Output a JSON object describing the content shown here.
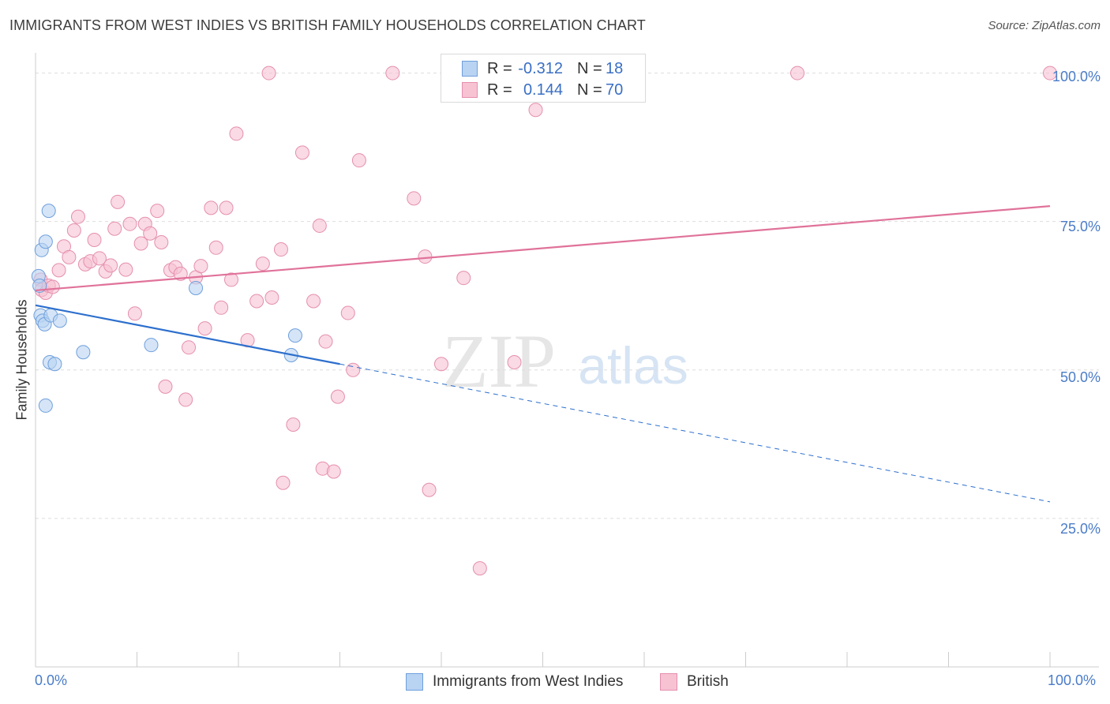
{
  "title": "IMMIGRANTS FROM WEST INDIES VS BRITISH FAMILY HOUSEHOLDS CORRELATION CHART",
  "source": "Source: ZipAtlas.com",
  "watermark": {
    "zip": "ZIP",
    "atlas": "atlas"
  },
  "legend_top": [
    {
      "r_label": "R =",
      "r_value": "-0.312",
      "n_label": "N =",
      "n_value": "18"
    },
    {
      "r_label": "R =",
      "r_value": "0.144",
      "n_label": "N =",
      "n_value": "70"
    }
  ],
  "legend_bottom": [
    {
      "label": "Immigrants from West Indies"
    },
    {
      "label": "British"
    }
  ],
  "colors": {
    "blue_fill": "#b9d3f2",
    "blue_stroke": "#6f9fdc",
    "blue_line": "#2d6fcd",
    "pink_fill": "#f7c2d2",
    "pink_stroke": "#e58fae",
    "pink_line": "#e0729a",
    "tick_text": "#4a7cc8",
    "grid": "#dddddd"
  },
  "chart_data": {
    "type": "scatter",
    "title": "IMMIGRANTS FROM WEST INDIES VS BRITISH FAMILY HOUSEHOLDS CORRELATION CHART",
    "xlabel": "",
    "ylabel": "Family Households",
    "xlim": [
      0,
      100
    ],
    "ylim": [
      0,
      103
    ],
    "x_tick_labels": [
      "0.0%",
      "100.0%"
    ],
    "y_ticks": [
      25,
      50,
      75,
      100
    ],
    "y_tick_labels": [
      "25.0%",
      "50.0%",
      "75.0%",
      "100.0%"
    ],
    "series": [
      {
        "name": "Immigrants from West Indies",
        "color": "blue",
        "r": -0.312,
        "n": 18,
        "trend": {
          "x0": 0,
          "y0": 60.9,
          "x1_solid": 30,
          "y1_solid": 51.0,
          "x1_dash": 100,
          "y1_dash": 27.8
        },
        "points": [
          [
            0.3,
            65.8
          ],
          [
            0.4,
            64.2
          ],
          [
            0.5,
            59.2
          ],
          [
            0.6,
            70.2
          ],
          [
            0.7,
            58.3
          ],
          [
            0.9,
            57.7
          ],
          [
            1.0,
            71.6
          ],
          [
            1.0,
            44.0
          ],
          [
            1.3,
            76.8
          ],
          [
            1.4,
            51.3
          ],
          [
            1.5,
            59.2
          ],
          [
            1.9,
            51.0
          ],
          [
            2.4,
            58.3
          ],
          [
            4.7,
            53.0
          ],
          [
            11.4,
            54.2
          ],
          [
            15.8,
            63.8
          ],
          [
            25.2,
            52.5
          ],
          [
            25.6,
            55.8
          ]
        ]
      },
      {
        "name": "British",
        "color": "pink",
        "r": 0.144,
        "n": 70,
        "trend": {
          "x0": 0,
          "y0": 63.4,
          "x1": 100,
          "y1": 77.6
        },
        "points": [
          [
            0.5,
            65.2
          ],
          [
            0.6,
            63.5
          ],
          [
            1.0,
            63.0
          ],
          [
            1.3,
            64.2
          ],
          [
            1.7,
            64.0
          ],
          [
            2.3,
            66.8
          ],
          [
            2.8,
            70.8
          ],
          [
            3.3,
            69.0
          ],
          [
            3.8,
            73.5
          ],
          [
            4.2,
            75.8
          ],
          [
            4.9,
            67.8
          ],
          [
            5.4,
            68.3
          ],
          [
            5.8,
            71.9
          ],
          [
            6.3,
            68.8
          ],
          [
            6.9,
            66.6
          ],
          [
            7.4,
            67.6
          ],
          [
            8.1,
            78.3
          ],
          [
            7.8,
            73.8
          ],
          [
            8.9,
            66.9
          ],
          [
            9.3,
            74.6
          ],
          [
            9.8,
            59.5
          ],
          [
            10.4,
            71.3
          ],
          [
            10.8,
            74.6
          ],
          [
            11.3,
            73.0
          ],
          [
            12.0,
            76.8
          ],
          [
            12.4,
            71.5
          ],
          [
            12.8,
            47.2
          ],
          [
            13.3,
            66.8
          ],
          [
            13.8,
            67.3
          ],
          [
            14.3,
            66.2
          ],
          [
            14.8,
            45.0
          ],
          [
            15.1,
            53.8
          ],
          [
            15.8,
            65.6
          ],
          [
            16.3,
            67.5
          ],
          [
            16.7,
            57.0
          ],
          [
            17.3,
            77.3
          ],
          [
            17.8,
            70.6
          ],
          [
            18.3,
            60.5
          ],
          [
            18.8,
            77.3
          ],
          [
            19.3,
            65.2
          ],
          [
            19.8,
            89.8
          ],
          [
            20.9,
            55.0
          ],
          [
            21.8,
            61.6
          ],
          [
            22.4,
            67.9
          ],
          [
            23.3,
            62.2
          ],
          [
            23.0,
            100.0
          ],
          [
            24.2,
            70.3
          ],
          [
            24.4,
            31.0
          ],
          [
            25.4,
            40.8
          ],
          [
            26.3,
            86.6
          ],
          [
            27.4,
            61.6
          ],
          [
            28.0,
            74.3
          ],
          [
            28.3,
            33.4
          ],
          [
            28.6,
            54.8
          ],
          [
            29.4,
            32.9
          ],
          [
            29.8,
            45.5
          ],
          [
            30.8,
            59.6
          ],
          [
            31.3,
            50.0
          ],
          [
            31.9,
            85.3
          ],
          [
            35.2,
            100.0
          ],
          [
            37.3,
            78.9
          ],
          [
            38.4,
            69.1
          ],
          [
            38.8,
            29.8
          ],
          [
            40.0,
            51.0
          ],
          [
            42.2,
            65.5
          ],
          [
            43.8,
            16.6
          ],
          [
            47.2,
            51.3
          ],
          [
            49.3,
            93.8
          ],
          [
            75.1,
            100.0
          ],
          [
            100.0,
            100.0
          ]
        ]
      }
    ]
  }
}
